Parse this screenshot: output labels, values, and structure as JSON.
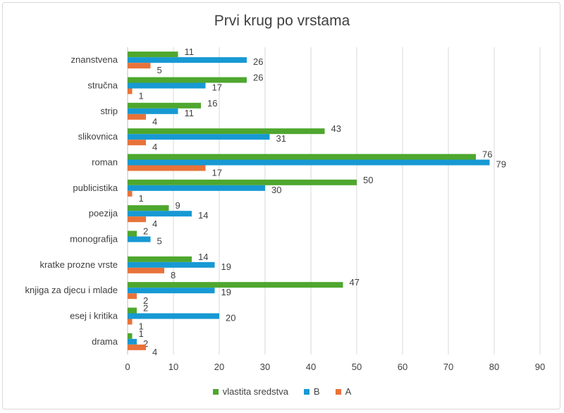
{
  "chart_data": {
    "type": "bar",
    "orientation": "horizontal",
    "title": "Prvi krug po vrstama",
    "xlabel": "",
    "ylabel": "",
    "xlim": [
      0,
      90
    ],
    "x_ticks": [
      "0",
      "10",
      "20",
      "30",
      "40",
      "50",
      "60",
      "70",
      "80",
      "90"
    ],
    "grid": true,
    "legend_position": "bottom",
    "categories": [
      "znanstvena",
      "stručna",
      "strip",
      "slikovnica",
      "roman",
      "publicistika",
      "poezija",
      "monografija",
      "kratke prozne vrste",
      "knjiga za djecu i mlade",
      "esej i kritika",
      "drama"
    ],
    "series": [
      {
        "name": "vlastita sredstva",
        "color": "#4ea72e",
        "values": [
          11,
          26,
          16,
          43,
          76,
          50,
          9,
          2,
          14,
          47,
          2,
          1
        ]
      },
      {
        "name": "B",
        "color": "#1799d3",
        "values": [
          26,
          17,
          11,
          31,
          79,
          30,
          14,
          5,
          19,
          19,
          20,
          2
        ]
      },
      {
        "name": "A",
        "color": "#e8733a",
        "values": [
          5,
          1,
          4,
          4,
          17,
          1,
          4,
          null,
          8,
          2,
          1,
          4
        ]
      }
    ]
  }
}
